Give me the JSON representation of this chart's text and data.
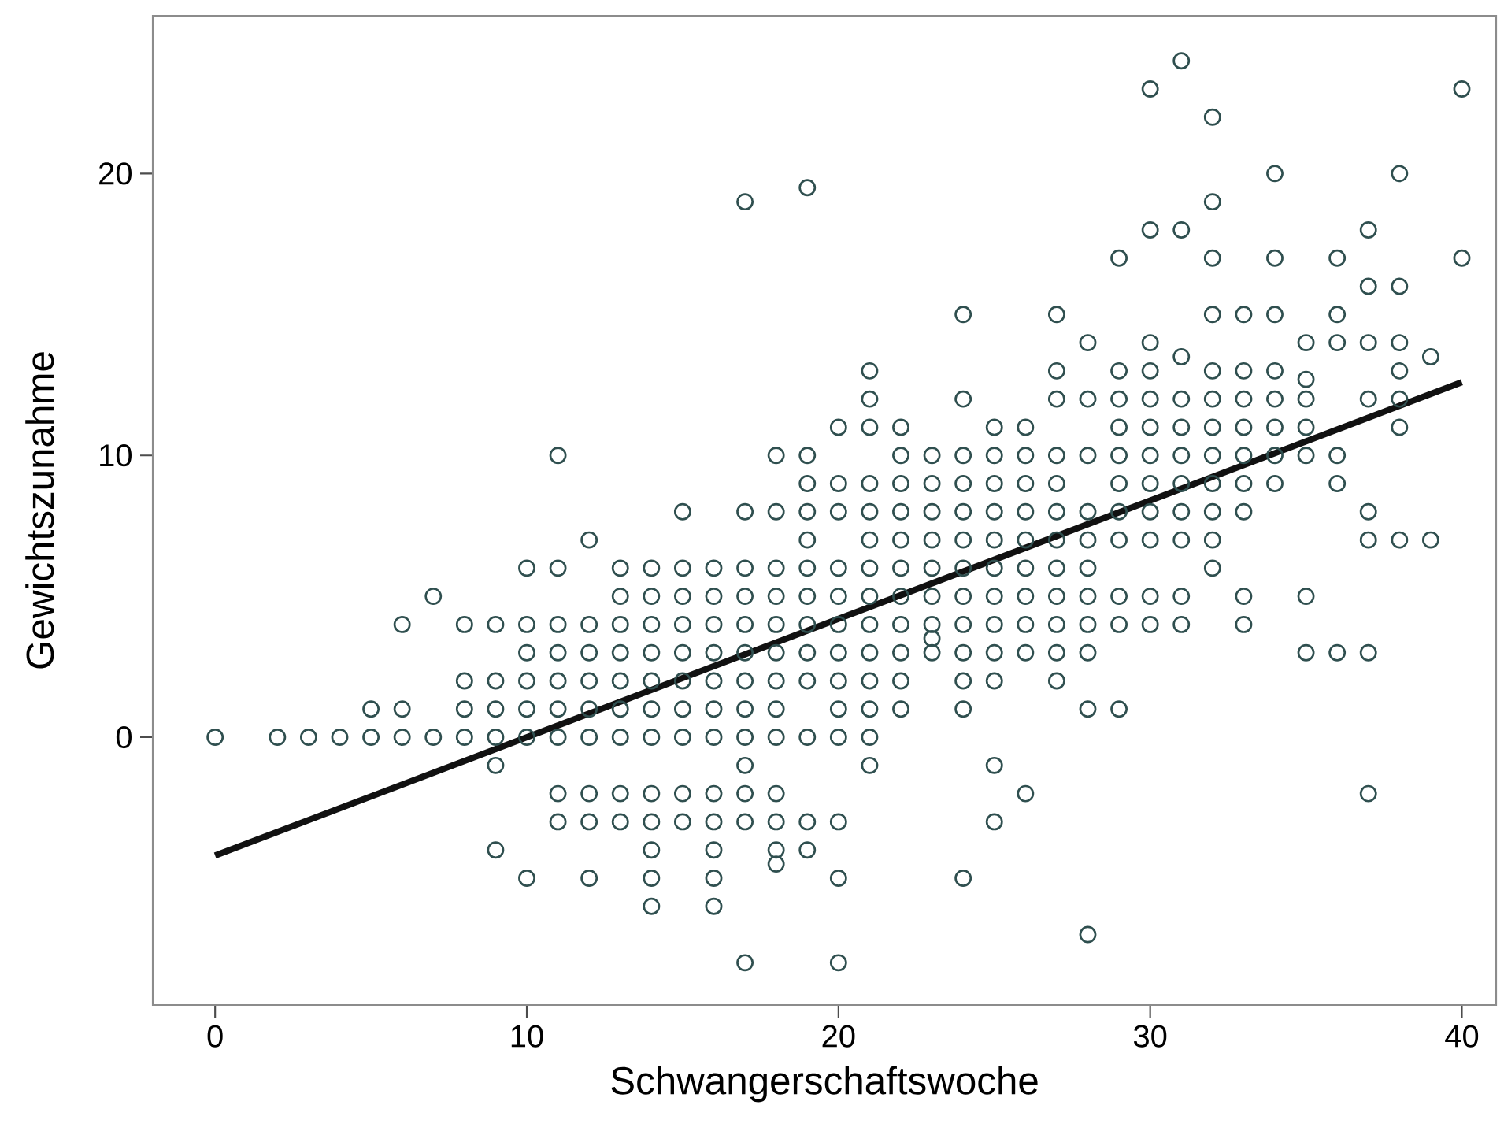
{
  "chart_data": {
    "type": "scatter",
    "xlabel": "Schwangerschaftswoche",
    "ylabel": "Gewichtszunahme",
    "xlim": [
      -2,
      41.1
    ],
    "ylim": [
      -9.5,
      25.6
    ],
    "xticks": [
      0,
      10,
      20,
      30,
      40
    ],
    "yticks": [
      0,
      10,
      20
    ],
    "marker": "circle",
    "series": [
      {
        "color": "#2f4f4f",
        "x": [
          0,
          2,
          3,
          4,
          5,
          5,
          6,
          6,
          6,
          7,
          7,
          8,
          8,
          8,
          8,
          9,
          9,
          9,
          9,
          9,
          9,
          10,
          10,
          10,
          10,
          10,
          10,
          10,
          11,
          11,
          11,
          11,
          11,
          11,
          11,
          11,
          11,
          12,
          12,
          12,
          12,
          12,
          12,
          12,
          12,
          12,
          13,
          13,
          13,
          13,
          13,
          13,
          13,
          13,
          13,
          14,
          14,
          14,
          14,
          14,
          14,
          14,
          14,
          14,
          14,
          14,
          14,
          15,
          15,
          15,
          15,
          15,
          15,
          15,
          15,
          15,
          15,
          16,
          16,
          16,
          16,
          16,
          16,
          16,
          16,
          16,
          16,
          16,
          16,
          17,
          17,
          17,
          17,
          17,
          17,
          17,
          17,
          17,
          17,
          17,
          17,
          17,
          18,
          18,
          18,
          18,
          18,
          18,
          18,
          18,
          18,
          18,
          18,
          18,
          18,
          19,
          19,
          19,
          19,
          19,
          19,
          19,
          19,
          19,
          19,
          19,
          19,
          19,
          20,
          20,
          20,
          20,
          20,
          20,
          20,
          20,
          20,
          20,
          20,
          20,
          20,
          21,
          21,
          21,
          21,
          21,
          21,
          21,
          21,
          21,
          21,
          21,
          21,
          21,
          21,
          22,
          22,
          22,
          22,
          22,
          22,
          22,
          22,
          22,
          22,
          22,
          23,
          23,
          23,
          23,
          23,
          23,
          23,
          23,
          23,
          24,
          24,
          24,
          24,
          24,
          24,
          24,
          24,
          24,
          24,
          24,
          24,
          24,
          25,
          25,
          25,
          25,
          25,
          25,
          25,
          25,
          25,
          25,
          25,
          25,
          26,
          26,
          26,
          26,
          26,
          26,
          26,
          26,
          26,
          26,
          27,
          27,
          27,
          27,
          27,
          27,
          27,
          27,
          27,
          27,
          27,
          27,
          28,
          28,
          28,
          28,
          28,
          28,
          28,
          28,
          28,
          28,
          28,
          29,
          29,
          29,
          29,
          29,
          29,
          29,
          29,
          29,
          29,
          29,
          30,
          30,
          30,
          30,
          30,
          30,
          30,
          30,
          30,
          30,
          30,
          30,
          31,
          31,
          31,
          31,
          31,
          31,
          31,
          31,
          31,
          31,
          31,
          32,
          32,
          32,
          32,
          32,
          32,
          32,
          32,
          32,
          32,
          32,
          32,
          33,
          33,
          33,
          33,
          33,
          33,
          33,
          33,
          33,
          34,
          34,
          34,
          34,
          34,
          34,
          34,
          34,
          35,
          35,
          35,
          35,
          35,
          35,
          35,
          36,
          36,
          36,
          36,
          36,
          36,
          37,
          37,
          37,
          37,
          37,
          37,
          37,
          37,
          38,
          38,
          38,
          38,
          38,
          38,
          38,
          39,
          39,
          40,
          40
        ],
        "values": [
          0,
          0,
          0,
          0,
          0,
          1,
          0,
          1,
          4,
          0,
          5,
          0,
          1,
          2,
          4,
          -4,
          -1,
          0,
          1,
          2,
          4,
          -5,
          0,
          1,
          2,
          3,
          4,
          6,
          -3,
          -2,
          0,
          1,
          2,
          3,
          4,
          6,
          10,
          -5,
          -3,
          -2,
          0,
          1,
          2,
          3,
          4,
          7,
          -3,
          -2,
          0,
          1,
          2,
          3,
          4,
          5,
          6,
          -6,
          -5,
          -4,
          -3,
          -2,
          0,
          1,
          2,
          3,
          4,
          5,
          6,
          -3,
          -2,
          0,
          1,
          2,
          3,
          4,
          5,
          6,
          8,
          -6,
          -5,
          -4,
          -3,
          -2,
          0,
          1,
          2,
          3,
          4,
          5,
          6,
          -8,
          -3,
          -2,
          -1,
          0,
          1,
          2,
          3,
          4,
          5,
          6,
          8,
          19,
          -4.5,
          -4,
          -3,
          -2,
          0,
          1,
          2,
          3,
          4,
          5,
          6,
          8,
          10,
          -4,
          -3,
          0,
          2,
          3,
          4,
          5,
          6,
          7,
          8,
          9,
          10,
          19.5,
          -8,
          -5,
          -3,
          0,
          1,
          2,
          3,
          4,
          5,
          6,
          8,
          9,
          11,
          -1,
          0,
          1,
          2,
          3,
          4,
          5,
          6,
          7,
          8,
          9,
          11,
          12,
          13,
          1,
          2,
          3,
          4,
          5,
          6,
          7,
          8,
          9,
          10,
          11,
          3,
          3.5,
          4,
          5,
          6,
          7,
          8,
          9,
          10,
          -5,
          1,
          2,
          3,
          4,
          5,
          6,
          7,
          8,
          9,
          10,
          12,
          15,
          -3,
          -1,
          2,
          3,
          4,
          5,
          6,
          7,
          8,
          9,
          10,
          11,
          -2,
          3,
          4,
          5,
          6,
          7,
          8,
          9,
          10,
          11,
          2,
          3,
          4,
          5,
          6,
          7,
          8,
          9,
          10,
          12,
          13,
          15,
          -7,
          1,
          3,
          4,
          5,
          6,
          7,
          8,
          10,
          12,
          14,
          1,
          4,
          5,
          7,
          8,
          9,
          10,
          11,
          12,
          13,
          17,
          4,
          5,
          7,
          8,
          9,
          10,
          11,
          12,
          13,
          14,
          18,
          23,
          4,
          5,
          7,
          8,
          9,
          10,
          11,
          12,
          13.5,
          18,
          24,
          6,
          7,
          8,
          9,
          10,
          11,
          12,
          13,
          15,
          17,
          19,
          22,
          4,
          5,
          8,
          9,
          10,
          11,
          12,
          13,
          15,
          9,
          10,
          11,
          12,
          13,
          15,
          17,
          20,
          3,
          5,
          10,
          11,
          12,
          12.7,
          14,
          3,
          9,
          10,
          14,
          15,
          17,
          -2,
          3,
          7,
          8,
          12,
          14,
          16,
          18,
          7,
          11,
          12,
          13,
          14,
          16,
          20,
          7,
          13.5,
          17,
          23
        ]
      },
      {
        "type": "line",
        "color": "#111111",
        "marker": "none",
        "line_style": "solid",
        "x": [
          0,
          40
        ],
        "values": [
          -4.2,
          12.6
        ]
      }
    ]
  }
}
